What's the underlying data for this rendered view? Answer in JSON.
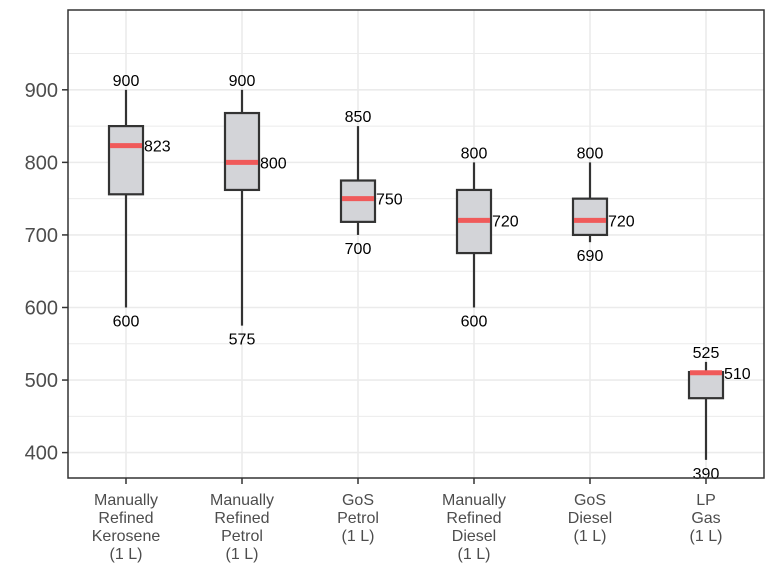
{
  "chart_data": {
    "type": "box",
    "title": "",
    "xlabel": "",
    "ylabel": "",
    "ylim": [
      365,
      1010
    ],
    "yticks": [
      400,
      500,
      600,
      700,
      800,
      900
    ],
    "grid": true,
    "legend": "none",
    "colors": {
      "box_fill": "#d3d4d8",
      "median": "#f05a5a",
      "outline": "#333333",
      "grid": "#ebebeb"
    },
    "categories": [
      {
        "lines": [
          "Manually",
          "Refined",
          "Kerosene",
          "(1 L)"
        ],
        "min": 600,
        "q1": 756,
        "median": 823,
        "q3": 850,
        "max": 900,
        "label_min": "600",
        "label_median": "823",
        "label_max": "900"
      },
      {
        "lines": [
          "Manually",
          "Refined",
          "Petrol",
          "(1 L)"
        ],
        "min": 575,
        "q1": 762,
        "median": 800,
        "q3": 868,
        "max": 900,
        "label_min": "575",
        "label_median": "800",
        "label_max": "900"
      },
      {
        "lines": [
          "GoS",
          "Petrol",
          "(1 L)"
        ],
        "min": 700,
        "q1": 718,
        "median": 750,
        "q3": 775,
        "max": 850,
        "label_min": "700",
        "label_median": "750",
        "label_max": "850"
      },
      {
        "lines": [
          "Manually",
          "Refined",
          "Diesel",
          "(1 L)"
        ],
        "min": 600,
        "q1": 675,
        "median": 720,
        "q3": 762,
        "max": 800,
        "label_min": "600",
        "label_median": "720",
        "label_max": "800"
      },
      {
        "lines": [
          "GoS",
          "Diesel",
          "(1 L)"
        ],
        "min": 690,
        "q1": 700,
        "median": 720,
        "q3": 750,
        "max": 800,
        "label_min": "690",
        "label_median": "720",
        "label_max": "800"
      },
      {
        "lines": [
          "LP",
          "Gas",
          "(1 L)"
        ],
        "min": 390,
        "q1": 475,
        "median": 510,
        "q3": 511,
        "max": 525,
        "label_min": "390",
        "label_median": "510",
        "label_max": "525"
      }
    ]
  }
}
